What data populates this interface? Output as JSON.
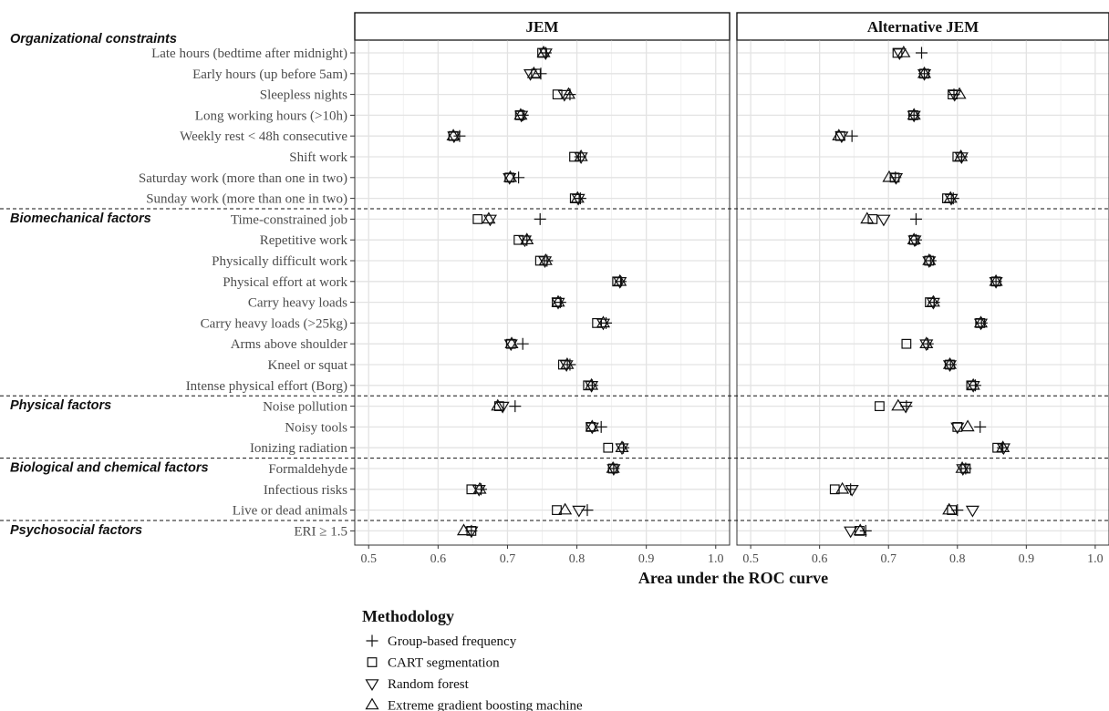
{
  "chart_data": {
    "type": "scatter",
    "xlabel": "Area under the ROC curve",
    "xlim": [
      0.48,
      1.02
    ],
    "xticks": [
      0.5,
      0.6,
      0.7,
      0.8,
      0.9,
      1.0
    ],
    "xtick_labels": [
      "0.5",
      "0.6",
      "0.7",
      "0.8",
      "0.9",
      "1.0"
    ],
    "grid": true,
    "panels": [
      "JEM",
      "Alternative JEM"
    ],
    "legend": {
      "title": "Methodology",
      "placement": "bottom-left",
      "items": [
        {
          "key": "group",
          "label": "Group-based frequency",
          "shape": "plus"
        },
        {
          "key": "cart",
          "label": "CART segmentation",
          "shape": "square"
        },
        {
          "key": "rf",
          "label": "Random forest",
          "shape": "triangle-down"
        },
        {
          "key": "xgb",
          "label": "Extreme gradient boosting machine",
          "shape": "triangle-up"
        }
      ]
    },
    "groups": [
      {
        "label": "Organizational constraints",
        "start": 0,
        "end": 7
      },
      {
        "label": "Biomechanical factors",
        "start": 8,
        "end": 16
      },
      {
        "label": "Physical factors",
        "start": 17,
        "end": 19
      },
      {
        "label": "Biological and chemical factors",
        "start": 20,
        "end": 22
      },
      {
        "label": "Psychosocial factors",
        "start": 23,
        "end": 23
      }
    ],
    "rows": [
      {
        "label": "Late hours (bedtime after midnight)",
        "jem": {
          "group": 0.755,
          "cart": 0.75,
          "rf": 0.755,
          "xgb": 0.752
        },
        "alt": {
          "group": 0.748,
          "cart": 0.713,
          "rf": 0.716,
          "xgb": 0.722
        }
      },
      {
        "label": "Early hours (up before 5am)",
        "jem": {
          "group": 0.748,
          "cart": 0.741,
          "rf": 0.733,
          "xgb": 0.738
        },
        "alt": {
          "group": 0.752,
          "cart": 0.752,
          "rf": 0.752,
          "xgb": 0.752
        }
      },
      {
        "label": "Sleepless nights",
        "jem": {
          "group": 0.79,
          "cart": 0.772,
          "rf": 0.782,
          "xgb": 0.788
        },
        "alt": {
          "group": 0.795,
          "cart": 0.793,
          "rf": 0.796,
          "xgb": 0.803
        }
      },
      {
        "label": "Long working hours (>10h)",
        "jem": {
          "group": 0.722,
          "cart": 0.718,
          "rf": 0.72,
          "xgb": 0.719
        },
        "alt": {
          "group": 0.737,
          "cart": 0.736,
          "rf": 0.737,
          "xgb": 0.737
        }
      },
      {
        "label": "Weekly rest < 48h consecutive",
        "jem": {
          "group": 0.631,
          "cart": 0.622,
          "rf": 0.623,
          "xgb": 0.622
        },
        "alt": {
          "group": 0.647,
          "cart": 0.63,
          "rf": 0.632,
          "xgb": 0.628
        }
      },
      {
        "label": "Shift work",
        "jem": {
          "group": 0.805,
          "cart": 0.796,
          "rf": 0.806,
          "xgb": 0.806
        },
        "alt": {
          "group": 0.806,
          "cart": 0.8,
          "rf": 0.806,
          "xgb": 0.805
        }
      },
      {
        "label": "Saturday work (more than one in two)",
        "jem": {
          "group": 0.716,
          "cart": 0.703,
          "rf": 0.703,
          "xgb": 0.704
        },
        "alt": {
          "group": 0.71,
          "cart": 0.709,
          "rf": 0.711,
          "xgb": 0.701
        }
      },
      {
        "label": "Sunday work (more than one in two)",
        "jem": {
          "group": 0.805,
          "cart": 0.797,
          "rf": 0.802,
          "xgb": 0.801
        },
        "alt": {
          "group": 0.794,
          "cart": 0.785,
          "rf": 0.791,
          "xgb": 0.79
        }
      },
      {
        "label": "Time-constrained job",
        "jem": {
          "group": 0.747,
          "cart": 0.657,
          "rf": 0.675,
          "xgb": 0.673
        },
        "alt": {
          "group": 0.74,
          "cart": 0.677,
          "rf": 0.693,
          "xgb": 0.669
        }
      },
      {
        "label": "Repetitive work",
        "jem": {
          "group": 0.728,
          "cart": 0.716,
          "rf": 0.725,
          "xgb": 0.728
        },
        "alt": {
          "group": 0.74,
          "cart": 0.737,
          "rf": 0.738,
          "xgb": 0.737
        }
      },
      {
        "label": "Physically difficult work",
        "jem": {
          "group": 0.757,
          "cart": 0.747,
          "rf": 0.754,
          "xgb": 0.755
        },
        "alt": {
          "group": 0.761,
          "cart": 0.759,
          "rf": 0.759,
          "xgb": 0.759
        }
      },
      {
        "label": "Physical effort at work",
        "jem": {
          "group": 0.863,
          "cart": 0.858,
          "rf": 0.862,
          "xgb": 0.862
        },
        "alt": {
          "group": 0.856,
          "cart": 0.856,
          "rf": 0.856,
          "xgb": 0.856
        }
      },
      {
        "label": "Carry heavy loads",
        "jem": {
          "group": 0.776,
          "cart": 0.771,
          "rf": 0.773,
          "xgb": 0.773
        },
        "alt": {
          "group": 0.766,
          "cart": 0.76,
          "rf": 0.765,
          "xgb": 0.765
        }
      },
      {
        "label": "Carry heavy loads (>25kg)",
        "jem": {
          "group": 0.842,
          "cart": 0.829,
          "rf": 0.838,
          "xgb": 0.838
        },
        "alt": {
          "group": 0.835,
          "cart": 0.833,
          "rf": 0.834,
          "xgb": 0.834
        }
      },
      {
        "label": "Arms above shoulder",
        "jem": {
          "group": 0.722,
          "cart": 0.705,
          "rf": 0.705,
          "xgb": 0.706
        },
        "alt": {
          "group": 0.757,
          "cart": 0.726,
          "rf": 0.755,
          "xgb": 0.755
        }
      },
      {
        "label": "Kneel or squat",
        "jem": {
          "group": 0.79,
          "cart": 0.78,
          "rf": 0.785,
          "xgb": 0.786
        },
        "alt": {
          "group": 0.79,
          "cart": 0.789,
          "rf": 0.789,
          "xgb": 0.789
        }
      },
      {
        "label": "Intense physical effort (Borg)",
        "jem": {
          "group": 0.822,
          "cart": 0.816,
          "rf": 0.821,
          "xgb": 0.821
        },
        "alt": {
          "group": 0.826,
          "cart": 0.82,
          "rf": 0.823,
          "xgb": 0.823
        }
      },
      {
        "label": "Noise pollution",
        "jem": {
          "group": 0.711,
          "cart": 0.688,
          "rf": 0.693,
          "xgb": 0.686
        },
        "alt": {
          "group": 0.726,
          "cart": 0.687,
          "rf": 0.725,
          "xgb": 0.714
        }
      },
      {
        "label": "Noisy tools",
        "jem": {
          "group": 0.835,
          "cart": 0.82,
          "rf": 0.822,
          "xgb": 0.822
        },
        "alt": {
          "group": 0.833,
          "cart": 0.8,
          "rf": 0.8,
          "xgb": 0.815
        }
      },
      {
        "label": "Ionizing radiation",
        "jem": {
          "group": 0.867,
          "cart": 0.845,
          "rf": 0.865,
          "xgb": 0.865
        },
        "alt": {
          "group": 0.866,
          "cart": 0.858,
          "rf": 0.867,
          "xgb": 0.866
        }
      },
      {
        "label": "Formaldehyde",
        "jem": {
          "group": 0.853,
          "cart": 0.852,
          "rf": 0.853,
          "xgb": 0.852
        },
        "alt": {
          "group": 0.812,
          "cart": 0.812,
          "rf": 0.808,
          "xgb": 0.807
        }
      },
      {
        "label": "Infectious risks",
        "jem": {
          "group": 0.662,
          "cart": 0.648,
          "rf": 0.659,
          "xgb": 0.66
        },
        "alt": {
          "group": 0.645,
          "cart": 0.622,
          "rf": 0.647,
          "xgb": 0.633
        }
      },
      {
        "label": "Live or dead animals",
        "jem": {
          "group": 0.815,
          "cart": 0.771,
          "rf": 0.803,
          "xgb": 0.783
        },
        "alt": {
          "group": 0.8,
          "cart": 0.792,
          "rf": 0.822,
          "xgb": 0.788
        }
      },
      {
        "label": "ERI ≥ 1.5",
        "jem": {
          "group": 0.648,
          "cart": 0.648,
          "rf": 0.648,
          "xgb": 0.637
        },
        "alt": {
          "group": 0.667,
          "cart": 0.658,
          "rf": 0.645,
          "xgb": 0.659
        }
      }
    ]
  }
}
